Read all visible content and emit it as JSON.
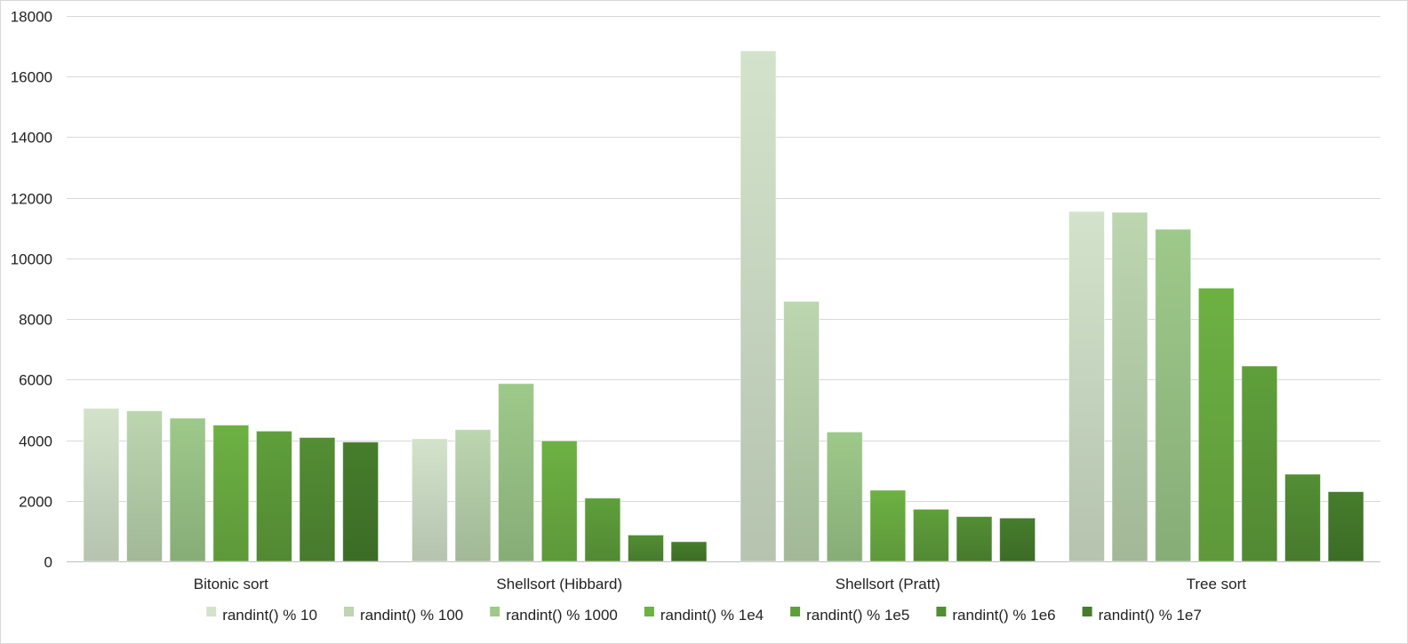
{
  "chart_data": {
    "type": "bar",
    "title": "",
    "xlabel": "",
    "ylabel": "",
    "ylim": [
      0,
      18000
    ],
    "yticks": [
      0,
      2000,
      4000,
      6000,
      8000,
      10000,
      12000,
      14000,
      16000,
      18000
    ],
    "grid": true,
    "legend_position": "bottom",
    "categories": [
      "Bitonic sort",
      "Shellsort (Hibbard)",
      "Shellsort (Pratt)",
      "Tree sort"
    ],
    "series": [
      {
        "name": "randint() % 10",
        "color": "#d3e3cb",
        "values": [
          5050,
          4050,
          16850,
          11550
        ]
      },
      {
        "name": "randint() % 100",
        "color": "#bcd6b0",
        "values": [
          4970,
          4350,
          8580,
          11520
        ]
      },
      {
        "name": "randint() % 1000",
        "color": "#9dc98a",
        "values": [
          4730,
          5870,
          4270,
          10960
        ]
      },
      {
        "name": "randint() % 1e4",
        "color": "#6db143",
        "values": [
          4500,
          3980,
          2350,
          9020
        ]
      },
      {
        "name": "randint() % 1e5",
        "color": "#5f9f3b",
        "values": [
          4300,
          2090,
          1720,
          6450
        ]
      },
      {
        "name": "randint() % 1e6",
        "color": "#538e34",
        "values": [
          4090,
          870,
          1480,
          2880
        ]
      },
      {
        "name": "randint() % 1e7",
        "color": "#467d2c",
        "values": [
          3940,
          650,
          1430,
          2300
        ]
      }
    ]
  }
}
